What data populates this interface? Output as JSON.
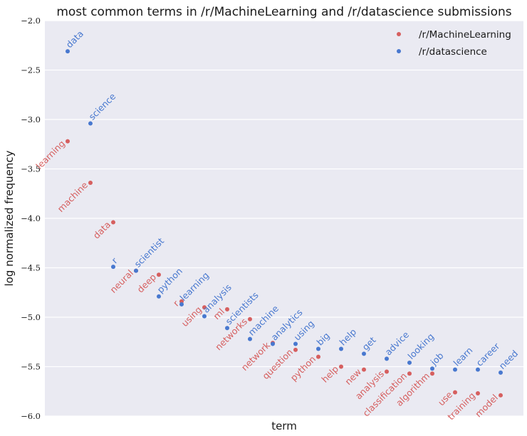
{
  "chart_data": {
    "type": "scatter",
    "title": "most common terms in /r/MachineLearning and /r/datascience submissions",
    "xlabel": "term",
    "ylabel": "log normalized frequency",
    "ylim": [
      -6.0,
      -2.0
    ],
    "yticks": [
      -6.0,
      -5.5,
      -5.0,
      -4.5,
      -4.0,
      -3.5,
      -3.0,
      -2.5,
      -2.0
    ],
    "ytick_labels": [
      "−6.0",
      "−5.5",
      "−5.0",
      "−4.5",
      "−4.0",
      "−3.5",
      "−3.0",
      "−2.5",
      "−2.0"
    ],
    "xlim": [
      -1,
      20
    ],
    "grid": true,
    "legend_position": "top-right",
    "colors": {
      "machinelearning": "#d65f5f",
      "datascience": "#4878cf",
      "background": "#eaeaf2",
      "grid": "#ffffff"
    },
    "series": [
      {
        "name": "/r/MachineLearning",
        "color": "#d65f5f",
        "label_side": "left",
        "points": [
          {
            "x": 0,
            "y": -3.22,
            "term": "learning"
          },
          {
            "x": 1,
            "y": -3.64,
            "term": "machine"
          },
          {
            "x": 2,
            "y": -4.04,
            "term": "data"
          },
          {
            "x": 3,
            "y": -4.53,
            "term": "neural"
          },
          {
            "x": 4,
            "y": -4.57,
            "term": "deep"
          },
          {
            "x": 5,
            "y": -4.84,
            "term": "r"
          },
          {
            "x": 6,
            "y": -4.9,
            "term": "using"
          },
          {
            "x": 7,
            "y": -4.92,
            "term": "ml"
          },
          {
            "x": 8,
            "y": -5.02,
            "term": "networks"
          },
          {
            "x": 9,
            "y": -5.26,
            "term": "network"
          },
          {
            "x": 10,
            "y": -5.33,
            "term": "question"
          },
          {
            "x": 11,
            "y": -5.4,
            "term": "python"
          },
          {
            "x": 12,
            "y": -5.5,
            "term": "help"
          },
          {
            "x": 13,
            "y": -5.53,
            "term": "new"
          },
          {
            "x": 14,
            "y": -5.55,
            "term": "analysis"
          },
          {
            "x": 15,
            "y": -5.57,
            "term": "classification"
          },
          {
            "x": 16,
            "y": -5.57,
            "term": "algorithm"
          },
          {
            "x": 17,
            "y": -5.76,
            "term": "use"
          },
          {
            "x": 18,
            "y": -5.77,
            "term": "training"
          },
          {
            "x": 19,
            "y": -5.79,
            "term": "model"
          }
        ]
      },
      {
        "name": "/r/datascience",
        "color": "#4878cf",
        "label_side": "right",
        "points": [
          {
            "x": 0,
            "y": -2.31,
            "term": "data"
          },
          {
            "x": 1,
            "y": -3.04,
            "term": "science"
          },
          {
            "x": 2,
            "y": -4.49,
            "term": "r"
          },
          {
            "x": 3,
            "y": -4.53,
            "term": "scientist"
          },
          {
            "x": 4,
            "y": -4.79,
            "term": "python"
          },
          {
            "x": 5,
            "y": -4.87,
            "term": "learning"
          },
          {
            "x": 6,
            "y": -4.99,
            "term": "analysis"
          },
          {
            "x": 7,
            "y": -5.11,
            "term": "scientists"
          },
          {
            "x": 8,
            "y": -5.22,
            "term": "machine"
          },
          {
            "x": 9,
            "y": -5.27,
            "term": "analytics"
          },
          {
            "x": 10,
            "y": -5.27,
            "term": "using"
          },
          {
            "x": 11,
            "y": -5.32,
            "term": "big"
          },
          {
            "x": 12,
            "y": -5.32,
            "term": "help"
          },
          {
            "x": 13,
            "y": -5.37,
            "term": "get"
          },
          {
            "x": 14,
            "y": -5.42,
            "term": "advice"
          },
          {
            "x": 15,
            "y": -5.46,
            "term": "looking"
          },
          {
            "x": 16,
            "y": -5.52,
            "term": "job"
          },
          {
            "x": 17,
            "y": -5.53,
            "term": "learn"
          },
          {
            "x": 18,
            "y": -5.53,
            "term": "career"
          },
          {
            "x": 19,
            "y": -5.56,
            "term": "need"
          }
        ]
      }
    ]
  }
}
